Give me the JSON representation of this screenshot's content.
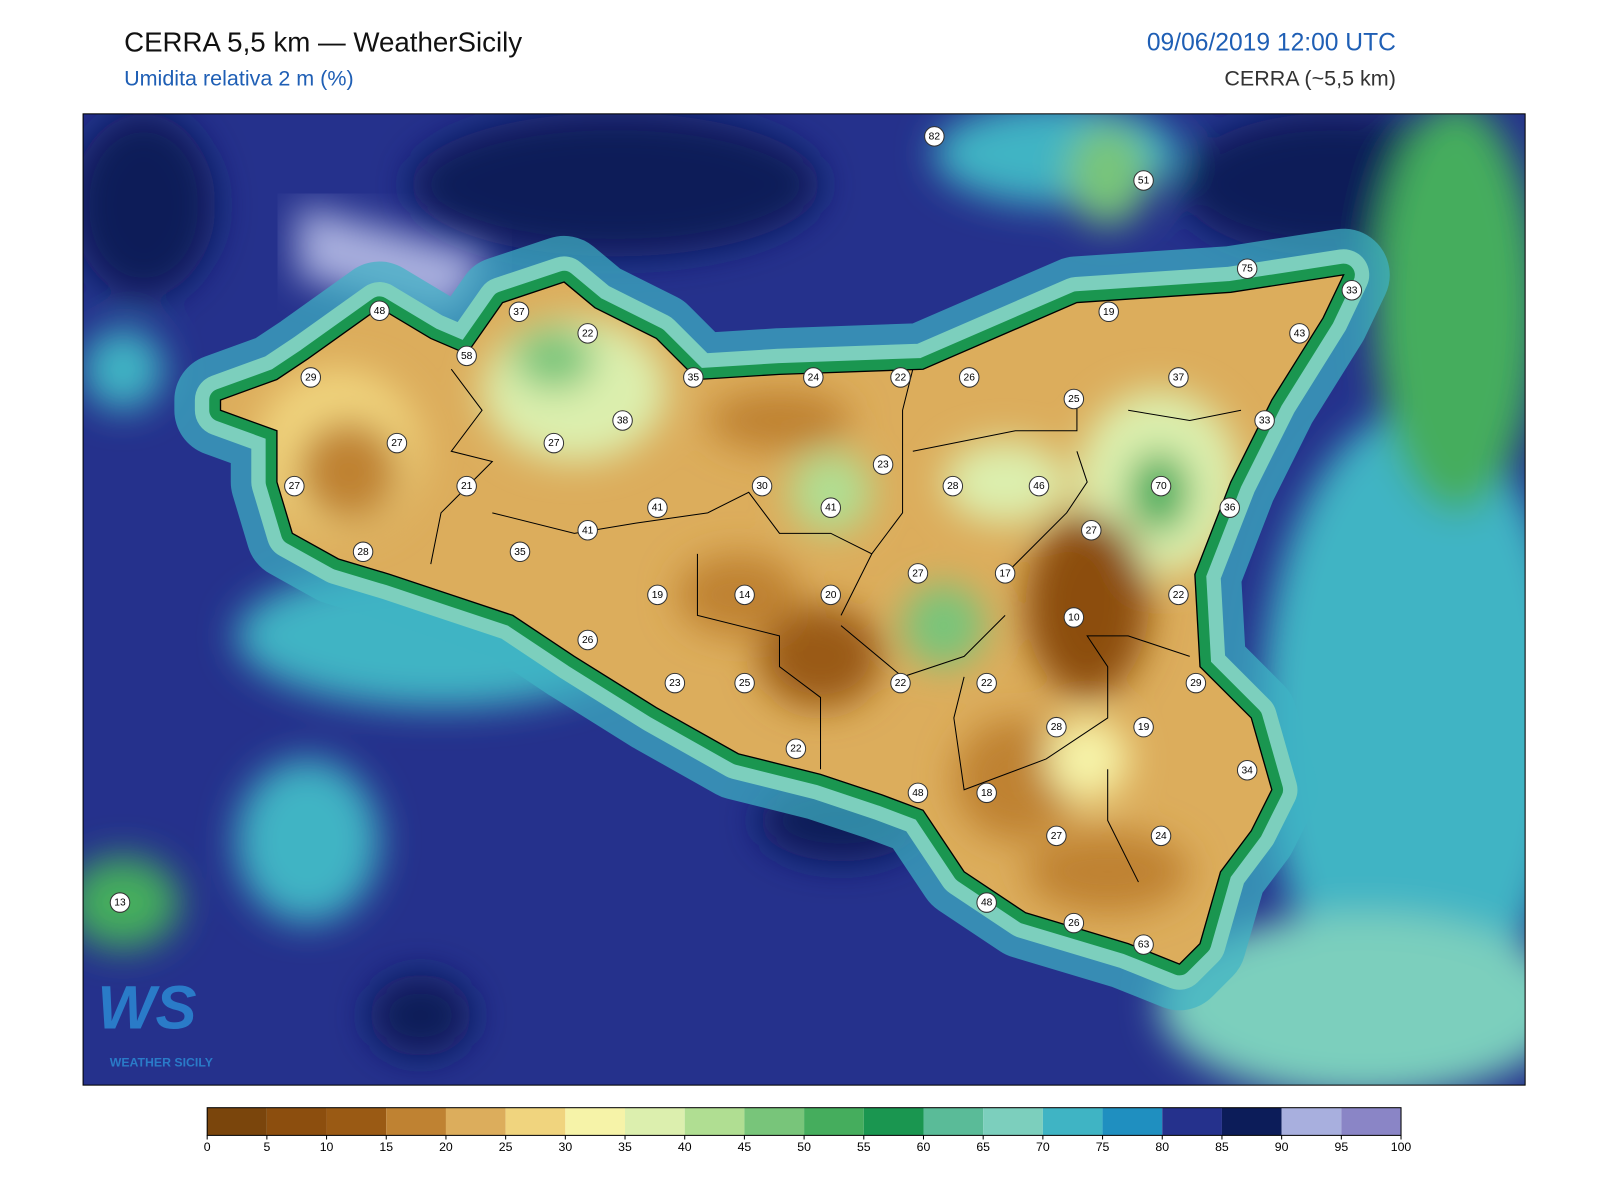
{
  "header": {
    "title": "CERRA 5,5 km — WeatherSicily",
    "subtitle": "Umidita relativa 2 m (%)",
    "date": "09/06/2019 12:00 UTC",
    "model": "CERRA (~5,5 km)"
  },
  "logo": {
    "mark": "WS",
    "text": "WEATHER SICILY"
  },
  "stations": [
    82,
    51,
    75,
    33,
    48,
    37,
    22,
    19,
    43,
    58,
    29,
    35,
    24,
    22,
    26,
    37,
    25,
    38,
    33,
    27,
    27,
    23,
    21,
    27,
    30,
    28,
    46,
    70,
    41,
    41,
    36,
    41,
    27,
    28,
    35,
    27,
    17,
    19,
    14,
    20,
    22,
    10,
    26,
    23,
    25,
    22,
    22,
    29,
    28,
    19,
    22,
    34,
    48,
    18,
    27,
    24,
    13,
    48,
    26,
    63
  ],
  "colorbar": {
    "ticks": [
      0,
      5,
      10,
      15,
      20,
      25,
      30,
      35,
      40,
      45,
      50,
      55,
      60,
      65,
      70,
      75,
      80,
      85,
      90,
      95,
      100
    ],
    "colors": [
      "#7a450c",
      "#8c4e0e",
      "#9a5a14",
      "#bf8232",
      "#dcad5c",
      "#f0d47e",
      "#f6f3a8",
      "#dcefae",
      "#b0de92",
      "#78c57a",
      "#45ad5d",
      "#1a9650",
      "#5abb98",
      "#7ccfbd",
      "#3fb4c4",
      "#1f8fc0",
      "#25318c",
      "#0c1c59",
      "#a8afde",
      "#8a85c6"
    ]
  }
}
